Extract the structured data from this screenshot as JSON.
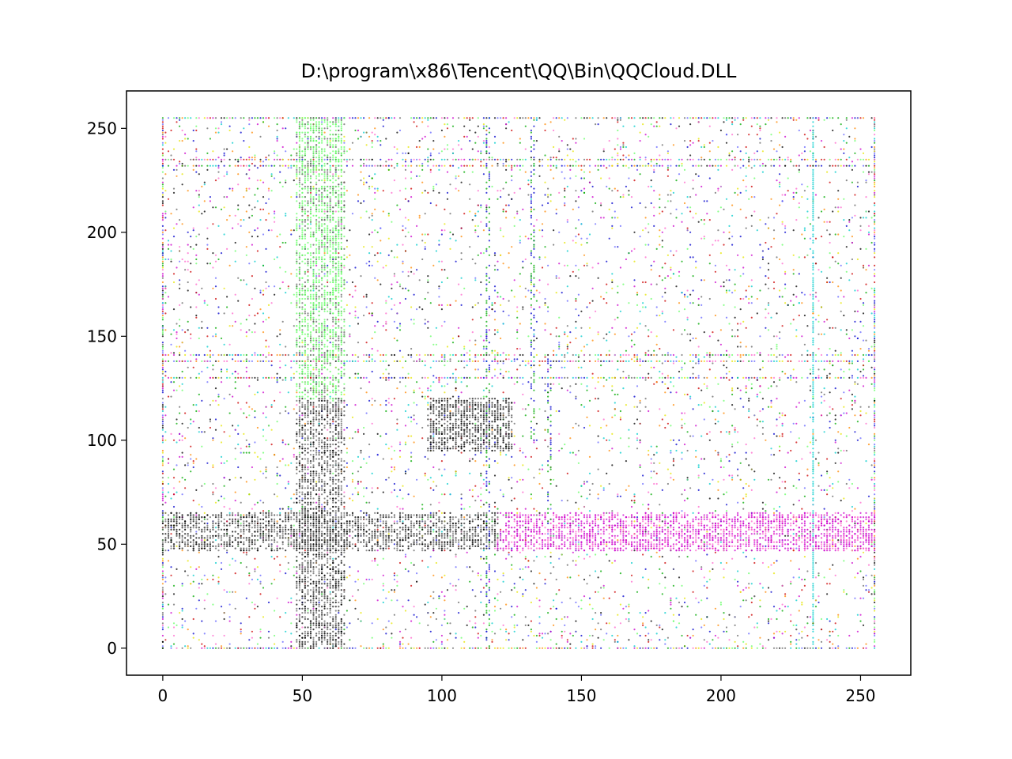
{
  "chart_data": {
    "type": "scatter",
    "title": "D:\\program\\x86\\Tencent\\QQ\\Bin\\QQCloud.DLL",
    "xlabel": "",
    "ylabel": "",
    "xlim": [
      -13,
      268
    ],
    "ylim": [
      -13,
      268
    ],
    "x_ticks": [
      0,
      50,
      100,
      150,
      200,
      250
    ],
    "y_ticks": [
      0,
      50,
      100,
      150,
      200,
      250
    ],
    "grid": false,
    "marker_palette": [
      "#000000",
      "#0000cc",
      "#cc0000",
      "#00aa00",
      "#cc00cc",
      "#00cccc",
      "#e6e600",
      "#ff8800",
      "#66ff66",
      "#ff66cc",
      "#6666ff",
      "#666666"
    ],
    "point_source": "byte-pair frequency plot; points at integer (x, y) byte values 0-255",
    "dense_regions": {
      "full_rows_y": [
        0,
        232,
        235,
        255,
        138,
        141,
        130
      ],
      "full_columns_x": [
        0,
        233,
        255
      ],
      "band_columns_x": [
        48,
        65
      ],
      "band_rows_y": [
        47,
        65
      ],
      "cluster": {
        "x": [
          95,
          125
        ],
        "y": [
          95,
          120
        ]
      },
      "column_segments": [
        {
          "x": 138,
          "y": [
            60,
            140
          ]
        },
        {
          "x": 116,
          "y": [
            0,
            260
          ]
        },
        {
          "x": 132,
          "y": [
            100,
            260
          ]
        }
      ]
    }
  }
}
